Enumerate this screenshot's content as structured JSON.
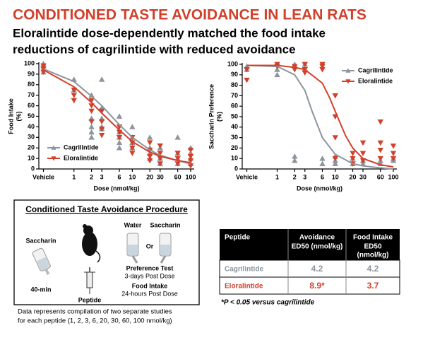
{
  "title": "CONDITIONED TASTE AVOIDANCE IN LEAN RATS",
  "subtitle": [
    "Eloralintide dose-dependently matched the food intake",
    "reductions of cagrilintide with reduced avoidance"
  ],
  "chart_data": [
    {
      "type": "scatter",
      "ylabel": [
        "Food Intake",
        "(%)"
      ],
      "xlabel": "Dose (nmol/kg)",
      "xscale": "log",
      "xlim": [
        0.25,
        115
      ],
      "xticks": [
        {
          "value": 0.3,
          "label": "Vehicle"
        },
        1,
        2,
        3,
        6,
        10,
        20,
        30,
        60,
        100
      ],
      "ylim": [
        0,
        100
      ],
      "yticks": [
        0,
        10,
        20,
        30,
        40,
        50,
        60,
        70,
        80,
        90,
        100
      ],
      "legend": "bottom-left",
      "series": [
        {
          "name": "Cagrilintide",
          "color": "#8d959d",
          "marker": "triangle-up",
          "x": [
            0.3,
            0.3,
            0.3,
            0.3,
            1,
            1,
            2,
            2,
            2,
            2,
            2,
            3,
            3,
            3,
            3,
            3,
            6,
            6,
            6,
            6,
            6,
            10,
            10,
            10,
            10,
            20,
            20,
            20,
            20,
            30,
            30,
            30,
            60,
            60,
            60,
            60,
            100,
            100,
            100,
            100
          ],
          "values": [
            100,
            95,
            98,
            92,
            85,
            75,
            70,
            48,
            40,
            35,
            30,
            85,
            58,
            48,
            40,
            38,
            50,
            35,
            30,
            25,
            20,
            40,
            30,
            25,
            20,
            30,
            20,
            15,
            10,
            20,
            10,
            5,
            30,
            15,
            10,
            5,
            20,
            15,
            10,
            5
          ],
          "fit_x": [
            0.3,
            1,
            2,
            3,
            6,
            10,
            20,
            30,
            60,
            100
          ],
          "fit_values": [
            95,
            83,
            69,
            60,
            42,
            30,
            18,
            13,
            8,
            5
          ]
        },
        {
          "name": "Eloralintide",
          "color": "#d2402b",
          "marker": "triangle-down",
          "x": [
            0.3,
            0.3,
            0.3,
            1,
            1,
            1,
            2,
            2,
            2,
            2,
            3,
            3,
            3,
            3,
            6,
            6,
            6,
            10,
            10,
            10,
            10,
            20,
            20,
            20,
            20,
            30,
            30,
            30,
            30,
            60,
            60,
            60,
            100,
            100,
            100,
            100
          ],
          "values": [
            98,
            95,
            92,
            75,
            70,
            65,
            65,
            60,
            55,
            45,
            55,
            45,
            38,
            32,
            40,
            35,
            30,
            30,
            25,
            20,
            15,
            25,
            18,
            12,
            8,
            22,
            15,
            10,
            5,
            15,
            10,
            5,
            18,
            12,
            8,
            3
          ],
          "fit_x": [
            0.3,
            1,
            2,
            3,
            6,
            10,
            20,
            30,
            60,
            100
          ],
          "fit_values": [
            94,
            78,
            63,
            53,
            37,
            26,
            16,
            12,
            8,
            6
          ]
        }
      ]
    },
    {
      "type": "scatter",
      "ylabel": [
        "Saccharin Preference",
        "(%)"
      ],
      "xlabel": "Dose (nmol/kg)",
      "xscale": "log",
      "xlim": [
        0.25,
        115
      ],
      "xticks": [
        {
          "value": 0.3,
          "label": "Vehicle"
        },
        1,
        2,
        3,
        6,
        10,
        20,
        30,
        60,
        100
      ],
      "ylim": [
        0,
        100
      ],
      "yticks": [
        0,
        10,
        20,
        30,
        40,
        50,
        60,
        70,
        80,
        90,
        100
      ],
      "legend": "top-right",
      "series": [
        {
          "name": "Cagrilintide",
          "color": "#8d959d",
          "marker": "triangle-up",
          "x": [
            0.3,
            0.3,
            1,
            1,
            2,
            2,
            2,
            2,
            3,
            3,
            6,
            6,
            10,
            10,
            10,
            20,
            20,
            30,
            30,
            60,
            60,
            100,
            100
          ],
          "values": [
            98,
            95,
            95,
            90,
            100,
            98,
            12,
            8,
            100,
            95,
            10,
            5,
            12,
            8,
            5,
            10,
            5,
            8,
            5,
            8,
            5,
            10,
            8
          ],
          "fit_x": [
            0.3,
            1,
            2,
            3,
            4,
            6,
            10,
            20,
            30,
            60,
            100
          ],
          "fit_values": [
            99,
            98,
            90,
            75,
            55,
            30,
            14,
            5,
            3,
            1,
            0
          ]
        },
        {
          "name": "Eloralintide",
          "color": "#d2402b",
          "marker": "triangle-down",
          "x": [
            0.3,
            0.3,
            1,
            1,
            2,
            2,
            3,
            3,
            3,
            6,
            6,
            6,
            10,
            10,
            10,
            10,
            20,
            20,
            20,
            30,
            30,
            30,
            60,
            60,
            60,
            60,
            100,
            100,
            100
          ],
          "values": [
            95,
            85,
            100,
            98,
            98,
            95,
            100,
            95,
            92,
            100,
            98,
            95,
            70,
            50,
            30,
            10,
            15,
            10,
            5,
            25,
            15,
            8,
            45,
            25,
            18,
            10,
            22,
            15,
            10
          ],
          "fit_x": [
            0.3,
            1,
            2,
            3,
            6,
            8,
            10,
            15,
            20,
            30,
            60,
            100
          ],
          "fit_values": [
            99,
            99,
            97,
            95,
            82,
            68,
            55,
            32,
            20,
            10,
            4,
            2
          ]
        }
      ]
    }
  ],
  "procedure": {
    "title": "Conditioned Taste Avoidance Procedure",
    "saccharin": "Saccharin",
    "time": "40-min",
    "peptide": "Peptide",
    "water": "Water",
    "or": "Or",
    "saccharin_2": "Saccharin",
    "preference": "Preference Test",
    "preference_time": "3-days Post Dose",
    "food": "Food Intake",
    "food_time": "24-hours Post Dose",
    "note": [
      "Data represents compilation of two separate studies",
      "for each peptide (1, 2, 3, 6, 20, 30, 60, 100 nmol/kg)"
    ]
  },
  "table": {
    "header": [
      [
        "Peptide"
      ],
      [
        "Avoidance",
        "ED50 (nmol/kg)"
      ],
      [
        "Food Intake",
        "ED50",
        "(nmol/kg)"
      ]
    ],
    "rows": [
      [
        "Cagrilintide",
        "4.2",
        "4.2"
      ],
      [
        "Eloralintide",
        "8.9*",
        "3.7"
      ]
    ],
    "footnote": "*P < 0.05 versus cagrilintide"
  }
}
